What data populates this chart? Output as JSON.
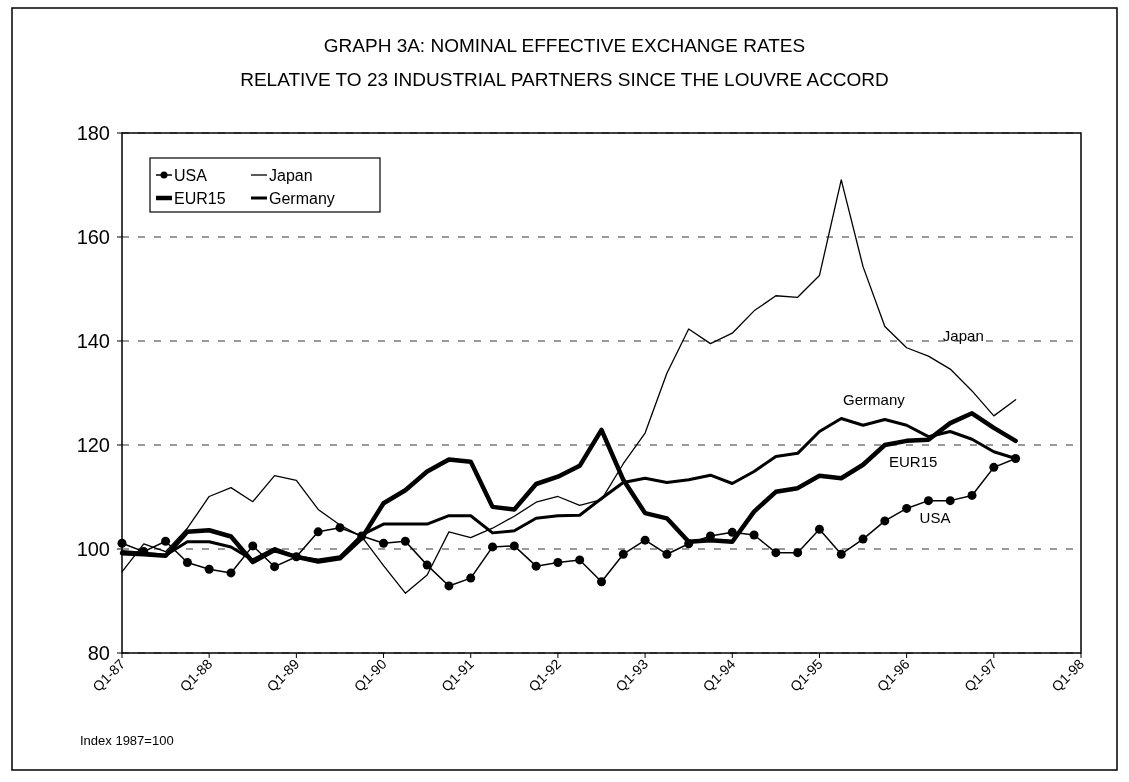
{
  "chart_data": {
    "type": "line",
    "title": "GRAPH 3A: NOMINAL EFFECTIVE EXCHANGE RATES",
    "subtitle": "RELATIVE TO 23 INDUSTRIAL PARTNERS SINCE THE LOUVRE ACCORD",
    "categories": [
      "Q1-87",
      null,
      null,
      null,
      "Q1-88",
      null,
      null,
      null,
      "Q1-89",
      null,
      null,
      null,
      "Q1-90",
      null,
      null,
      null,
      "Q1-91",
      null,
      null,
      null,
      "Q1-92",
      null,
      null,
      null,
      "Q1-93",
      null,
      null,
      null,
      "Q1-94",
      null,
      null,
      null,
      "Q1-95",
      null,
      null,
      null,
      "Q1-96",
      null,
      null,
      null,
      "Q1-97",
      null,
      null,
      null,
      "Q1-98"
    ],
    "series": [
      {
        "name": "USA",
        "color": "#000000",
        "marker": "circle",
        "values": [
          101.1,
          99.5,
          101.5,
          97.4,
          96.1,
          95.4,
          100.6,
          96.6,
          98.5,
          103.3,
          104.1,
          102.5,
          101.1,
          101.5,
          96.9,
          92.9,
          94.4,
          100.4,
          100.6,
          96.7,
          97.4,
          97.9,
          93.7,
          99.0,
          101.7,
          99.0,
          101.0,
          102.5,
          103.2,
          102.7,
          99.3,
          99.3,
          103.8,
          99.0,
          101.9,
          105.4,
          107.8,
          109.3,
          109.3,
          110.3,
          115.7,
          117.4,
          null,
          null,
          null
        ]
      },
      {
        "name": "Japan",
        "color": "#000000",
        "marker": "none",
        "values": [
          95.6,
          101.0,
          99.5,
          104.0,
          110.1,
          111.8,
          109.1,
          114.1,
          113.2,
          107.6,
          104.6,
          102.4,
          96.8,
          91.5,
          95.0,
          103.3,
          102.2,
          104.0,
          106.3,
          109.0,
          110.1,
          108.4,
          109.5,
          116.4,
          122.3,
          133.8,
          142.3,
          139.5,
          141.5,
          145.8,
          148.7,
          148.4,
          152.6,
          171.0,
          154.3,
          142.8,
          138.7,
          137.1,
          134.6,
          130.4,
          125.6,
          128.7,
          null,
          null,
          null
        ]
      },
      {
        "name": "EUR15",
        "color": "#000000",
        "marker": "none",
        "values": [
          99.2,
          99.0,
          98.7,
          103.3,
          103.6,
          102.4,
          97.5,
          99.8,
          98.5,
          97.6,
          98.2,
          102.1,
          108.8,
          111.3,
          114.9,
          117.2,
          116.8,
          108.1,
          107.6,
          112.5,
          113.9,
          116.0,
          122.9,
          113.3,
          106.9,
          105.9,
          101.4,
          101.7,
          101.4,
          107.2,
          111.0,
          111.7,
          114.1,
          113.6,
          116.2,
          120.0,
          120.8,
          121.0,
          124.2,
          126.1,
          123.3,
          120.8,
          null,
          null,
          null
        ]
      },
      {
        "name": "Germany",
        "color": "#000000",
        "marker": "none",
        "values": [
          99.5,
          99.2,
          98.8,
          101.4,
          101.4,
          100.4,
          97.9,
          100.1,
          98.5,
          97.9,
          98.5,
          102.7,
          104.8,
          104.8,
          104.8,
          106.4,
          106.4,
          103.1,
          103.5,
          105.9,
          106.4,
          106.5,
          109.7,
          112.8,
          113.6,
          112.8,
          113.3,
          114.2,
          112.6,
          114.9,
          117.8,
          118.4,
          122.6,
          125.1,
          123.8,
          124.9,
          123.8,
          121.6,
          122.6,
          121.1,
          118.7,
          117.4,
          null,
          null,
          null
        ]
      }
    ],
    "ylim": [
      80,
      180
    ],
    "yticks": [
      80,
      100,
      120,
      140,
      160,
      180
    ],
    "grid": "y",
    "legend": "top left",
    "annotations": [
      "Index 1987=100"
    ]
  }
}
